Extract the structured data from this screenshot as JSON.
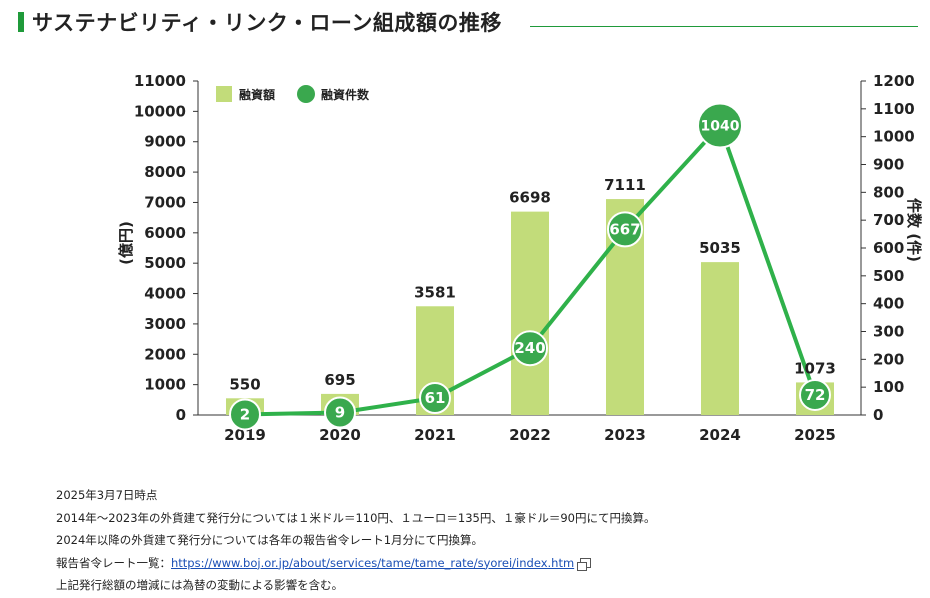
{
  "title": "サステナビリティ・リンク・ローン組成額の推移",
  "colors": {
    "accent": "#1f9a3a",
    "bar": "#c2dc7a",
    "line": "#2fb14a",
    "dot": "#3aa84e"
  },
  "chart_data": {
    "type": "bar+line",
    "categories": [
      "2019",
      "2020",
      "2021",
      "2022",
      "2023",
      "2024",
      "2025"
    ],
    "series": [
      {
        "name": "融資額",
        "type": "bar",
        "axis": "left",
        "values": [
          550,
          695,
          3581,
          6698,
          7111,
          5035,
          1073
        ]
      },
      {
        "name": "融資件数",
        "type": "line",
        "axis": "right",
        "values": [
          2,
          9,
          61,
          240,
          667,
          1040,
          72
        ]
      }
    ],
    "ylabel_left": "(億円)",
    "ylabel_right": "件数 (件)",
    "ylim_left": [
      0,
      11000
    ],
    "ylim_right": [
      0,
      1200
    ],
    "yticks_left": [
      "0",
      "1000",
      "2000",
      "3000",
      "4000",
      "5000",
      "6000",
      "7000",
      "8000",
      "9000",
      "10000",
      "11000"
    ],
    "yticks_right": [
      "0",
      "100",
      "200",
      "300",
      "400",
      "500",
      "600",
      "700",
      "800",
      "900",
      "1000",
      "1100",
      "1200"
    ],
    "legend_position": "top-left",
    "grid": false
  },
  "notes": {
    "line1": "2025年3月7日時点",
    "line2": "2014年～2023年の外貨建て発行分については１米ドル＝110円、１ユーロ＝135円、１豪ドル＝90円にて円換算。",
    "line3": "2024年以降の外貨建て発行分については各年の報告省令レート1月分にて円換算。",
    "line4_prefix": "報告省令レート一覧：",
    "line4_link": "https://www.boj.or.jp/about/services/tame/tame_rate/syorei/index.htm",
    "line5": "上記発行総額の増減には為替の変動による影響を含む。"
  }
}
